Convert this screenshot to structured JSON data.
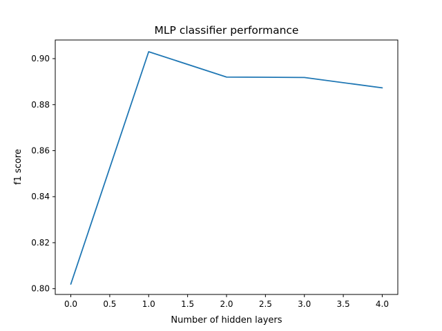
{
  "chart_data": {
    "type": "line",
    "title": "MLP classifier performance",
    "xlabel": "Number of hidden layers",
    "ylabel": "f1 score",
    "x": [
      0,
      1,
      2,
      3,
      4
    ],
    "series": [
      {
        "values": [
          0.802,
          0.903,
          0.892,
          0.8918,
          0.8873
        ],
        "color": "#1f77b4"
      }
    ],
    "xlim": [
      -0.2,
      4.2
    ],
    "ylim": [
      0.7975,
      0.9081
    ],
    "xticks": [
      0.0,
      0.5,
      1.0,
      1.5,
      2.0,
      2.5,
      3.0,
      3.5,
      4.0
    ],
    "xtick_labels": [
      "0.0",
      "0.5",
      "1.0",
      "1.5",
      "2.0",
      "2.5",
      "3.0",
      "3.5",
      "4.0"
    ],
    "yticks": [
      0.8,
      0.82,
      0.84,
      0.86,
      0.88,
      0.9
    ],
    "ytick_labels": [
      "0.80",
      "0.82",
      "0.84",
      "0.86",
      "0.88",
      "0.90"
    ],
    "grid": false,
    "legend": "none"
  }
}
